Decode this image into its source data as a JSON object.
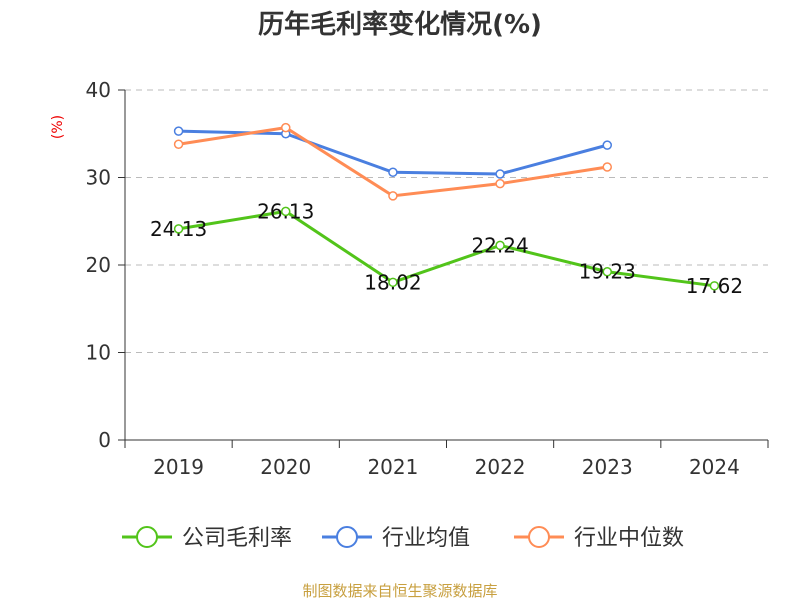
{
  "chart_data": {
    "type": "line",
    "title": "历年毛利率变化情况(%)",
    "ylabel": "(%)",
    "xlabel": "",
    "categories": [
      "2019",
      "2020",
      "2021",
      "2022",
      "2023",
      "2024"
    ],
    "ylim": [
      0,
      40
    ],
    "yticks": [
      "0",
      "10",
      "20",
      "30",
      "40"
    ],
    "grid": true,
    "legend_position": "bottom",
    "series": [
      {
        "name": "公司毛利率",
        "color": "#52c41a",
        "values": [
          24.13,
          26.13,
          18.02,
          22.24,
          19.23,
          17.62
        ],
        "labels": [
          "24.13",
          "26.13",
          "18.02",
          "22.24",
          "19.23",
          "17.62"
        ]
      },
      {
        "name": "行业均值",
        "color": "#4a7fe0",
        "values": [
          35.3,
          35.0,
          30.6,
          30.4,
          33.7,
          null
        ]
      },
      {
        "name": "行业中位数",
        "color": "#ff8c55",
        "values": [
          33.8,
          35.7,
          27.9,
          29.3,
          31.2,
          null
        ]
      }
    ]
  },
  "source": "制图数据来自恒生聚源数据库"
}
